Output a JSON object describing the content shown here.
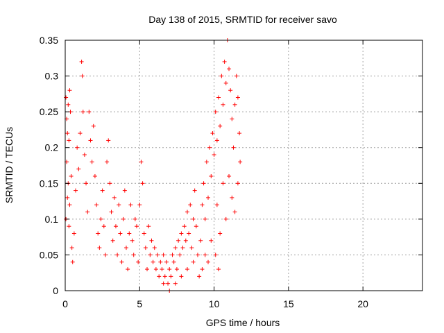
{
  "chart_data": {
    "type": "scatter",
    "title": "Day 138 of 2015, SRMTID for receiver savo",
    "xlabel": "GPS time / hours",
    "ylabel": "SRMTID / TECUs",
    "xlim": [
      0,
      24
    ],
    "ylim": [
      0,
      0.35
    ],
    "xticks": [
      0,
      5,
      10,
      15,
      20
    ],
    "xtick_labels": [
      "0",
      "5",
      "10",
      "15",
      "20"
    ],
    "yticks": [
      0,
      0.05,
      0.1,
      0.15,
      0.2,
      0.25,
      0.3,
      0.35
    ],
    "ytick_labels": [
      "0",
      "0.05",
      "0.1",
      "0.15",
      "0.2",
      "0.25",
      "0.3",
      "0.35"
    ],
    "grid": true,
    "marker": "+",
    "color": "#ff0000",
    "series": [
      {
        "name": "SRMTID",
        "points": [
          [
            0.05,
            0.27
          ],
          [
            0.1,
            0.24
          ],
          [
            0.15,
            0.22
          ],
          [
            0.2,
            0.26
          ],
          [
            0.25,
            0.21
          ],
          [
            0.3,
            0.28
          ],
          [
            0.35,
            0.25
          ],
          [
            0.1,
            0.18
          ],
          [
            0.2,
            0.15
          ],
          [
            0.3,
            0.12
          ],
          [
            0.05,
            0.1
          ],
          [
            0.15,
            0.13
          ],
          [
            0.25,
            0.09
          ],
          [
            0.4,
            0.16
          ],
          [
            0.45,
            0.06
          ],
          [
            0.5,
            0.04
          ],
          [
            0.6,
            0.08
          ],
          [
            0.7,
            0.14
          ],
          [
            0.8,
            0.2
          ],
          [
            0.9,
            0.17
          ],
          [
            1.0,
            0.22
          ],
          [
            1.1,
            0.32
          ],
          [
            1.15,
            0.3
          ],
          [
            1.2,
            0.25
          ],
          [
            1.3,
            0.19
          ],
          [
            1.4,
            0.15
          ],
          [
            1.5,
            0.11
          ],
          [
            1.6,
            0.25
          ],
          [
            1.7,
            0.21
          ],
          [
            1.8,
            0.18
          ],
          [
            1.9,
            0.23
          ],
          [
            2.0,
            0.16
          ],
          [
            2.1,
            0.12
          ],
          [
            2.2,
            0.08
          ],
          [
            2.3,
            0.06
          ],
          [
            2.4,
            0.1
          ],
          [
            2.5,
            0.14
          ],
          [
            2.6,
            0.09
          ],
          [
            2.7,
            0.05
          ],
          [
            2.8,
            0.18
          ],
          [
            2.9,
            0.21
          ],
          [
            3.0,
            0.15
          ],
          [
            3.1,
            0.11
          ],
          [
            3.2,
            0.07
          ],
          [
            3.3,
            0.13
          ],
          [
            3.4,
            0.09
          ],
          [
            3.5,
            0.05
          ],
          [
            3.6,
            0.12
          ],
          [
            3.7,
            0.08
          ],
          [
            3.8,
            0.04
          ],
          [
            3.9,
            0.1
          ],
          [
            4.0,
            0.14
          ],
          [
            4.1,
            0.06
          ],
          [
            4.2,
            0.03
          ],
          [
            4.3,
            0.08
          ],
          [
            4.4,
            0.12
          ],
          [
            4.5,
            0.07
          ],
          [
            4.6,
            0.05
          ],
          [
            4.7,
            0.1
          ],
          [
            4.8,
            0.09
          ],
          [
            4.9,
            0.04
          ],
          [
            5.0,
            0.12
          ],
          [
            5.1,
            0.18
          ],
          [
            5.2,
            0.15
          ],
          [
            5.3,
            0.08
          ],
          [
            5.4,
            0.06
          ],
          [
            5.5,
            0.03
          ],
          [
            5.6,
            0.09
          ],
          [
            5.7,
            0.05
          ],
          [
            5.8,
            0.07
          ],
          [
            5.9,
            0.04
          ],
          [
            6.0,
            0.06
          ],
          [
            6.1,
            0.03
          ],
          [
            6.2,
            0.05
          ],
          [
            6.3,
            0.02
          ],
          [
            6.4,
            0.04
          ],
          [
            6.5,
            0.03
          ],
          [
            6.6,
            0.05
          ],
          [
            6.7,
            0.02
          ],
          [
            6.8,
            0.04
          ],
          [
            6.9,
            0.01
          ],
          [
            7.0,
            0.03
          ],
          [
            7.1,
            0.02
          ],
          [
            7.2,
            0.05
          ],
          [
            7.3,
            0.04
          ],
          [
            7.4,
            0.06
          ],
          [
            7.5,
            0.03
          ],
          [
            7.6,
            0.07
          ],
          [
            7.7,
            0.05
          ],
          [
            7.8,
            0.08
          ],
          [
            7.9,
            0.06
          ],
          [
            8.0,
            0.09
          ],
          [
            8.1,
            0.07
          ],
          [
            8.2,
            0.11
          ],
          [
            8.3,
            0.08
          ],
          [
            8.4,
            0.12
          ],
          [
            8.5,
            0.06
          ],
          [
            8.6,
            0.1
          ],
          [
            8.7,
            0.14
          ],
          [
            8.8,
            0.09
          ],
          [
            8.9,
            0.05
          ],
          [
            9.0,
            0.02
          ],
          [
            9.1,
            0.07
          ],
          [
            9.2,
            0.12
          ],
          [
            9.3,
            0.15
          ],
          [
            9.4,
            0.1
          ],
          [
            9.5,
            0.18
          ],
          [
            9.6,
            0.13
          ],
          [
            9.7,
            0.2
          ],
          [
            9.8,
            0.16
          ],
          [
            9.9,
            0.22
          ],
          [
            10.0,
            0.19
          ],
          [
            10.1,
            0.25
          ],
          [
            10.2,
            0.21
          ],
          [
            10.3,
            0.27
          ],
          [
            10.4,
            0.23
          ],
          [
            10.5,
            0.3
          ],
          [
            10.6,
            0.26
          ],
          [
            10.7,
            0.32
          ],
          [
            10.8,
            0.29
          ],
          [
            10.9,
            0.35
          ],
          [
            11.0,
            0.31
          ],
          [
            11.1,
            0.28
          ],
          [
            11.2,
            0.24
          ],
          [
            11.3,
            0.2
          ],
          [
            11.4,
            0.26
          ],
          [
            11.5,
            0.3
          ],
          [
            11.6,
            0.27
          ],
          [
            11.7,
            0.22
          ],
          [
            11.75,
            0.18
          ],
          [
            10.2,
            0.12
          ],
          [
            10.4,
            0.08
          ],
          [
            10.6,
            0.15
          ],
          [
            10.8,
            0.1
          ],
          [
            11.0,
            0.16
          ],
          [
            11.2,
            0.13
          ],
          [
            11.4,
            0.11
          ],
          [
            11.6,
            0.15
          ],
          [
            10.1,
            0.05
          ],
          [
            10.3,
            0.03
          ],
          [
            9.6,
            0.04
          ],
          [
            9.8,
            0.07
          ],
          [
            9.4,
            0.05
          ],
          [
            9.2,
            0.03
          ],
          [
            8.6,
            0.04
          ],
          [
            8.2,
            0.03
          ],
          [
            7.8,
            0.02
          ],
          [
            7.4,
            0.01
          ],
          [
            7.0,
            0.0
          ],
          [
            6.6,
            0.01
          ]
        ]
      }
    ]
  }
}
